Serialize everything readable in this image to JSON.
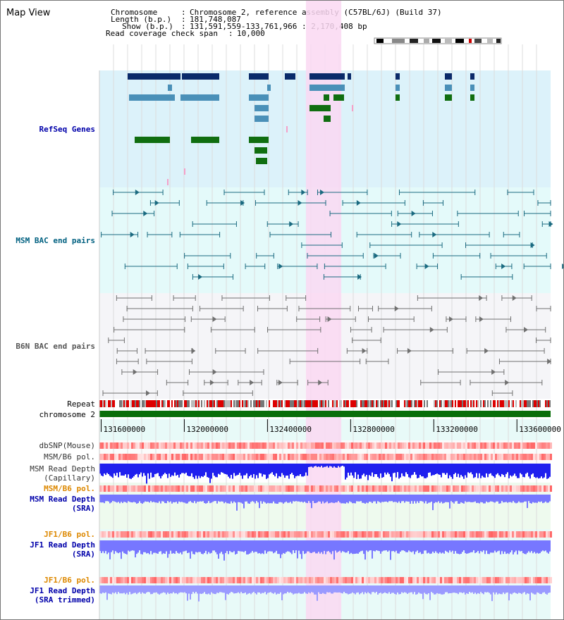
{
  "panel_title": "Map View",
  "header": {
    "chromosome_label": "Chromosome",
    "chromosome_value": "Chromosome 2, reference assembly (C57BL/6J) (Build 37)",
    "length_label": "Length (b.p.)",
    "length_value": "181,748,087",
    "show_label": "Show (b.p.)",
    "show_value": "131,591,559-133,761,966 : 2,170,408 bp",
    "span_label": "Read coverage check span",
    "span_value": "10,000"
  },
  "tracks": {
    "refseq": "RefSeq Genes",
    "msm_bac": "MSM BAC end pairs",
    "b6n_bac": "B6N BAC end pairs",
    "repeat": "Repeat",
    "chromosome": "chromosome 2",
    "dbsnp": "dbSNP(Mouse)",
    "msm_b6_pol_1": "MSM/B6 pol.",
    "msm_read_depth_cap_1": "MSM Read Depth",
    "msm_read_depth_cap_2": "(Capillary)",
    "msm_b6_pol_2": "MSM/B6 pol.",
    "msm_read_depth_sra_1": "MSM Read Depth",
    "msm_read_depth_sra_2": "(SRA)",
    "jf1_b6_pol_1": "JF1/B6 pol.",
    "jf1_read_depth_sra_1": "JF1 Read Depth",
    "jf1_read_depth_sra_2": "(SRA)",
    "jf1_b6_pol_2": "JF1/B6 pol.",
    "jf1_read_depth_trim_1": "JF1 Read Depth",
    "jf1_read_depth_trim_2": "(SRA trimmed)"
  },
  "chart_data": {
    "type": "genome-browser",
    "x_axis": {
      "range": [
        131591559,
        133761966
      ],
      "ticks": [
        131600000,
        132000000,
        132400000,
        132800000,
        133200000,
        133600000
      ]
    },
    "highlight_range": [
      132585000,
      132755000
    ],
    "colors": {
      "refseq_bg": "#dcf2fa",
      "msm_bg": "#e4fafa",
      "b6n_bg": "#f5f5f8",
      "depth_bg": "#e8faf8",
      "highlight": "#fad8f2",
      "refseq_dark": "#0a2a6a",
      "refseq_mid": "#4a90b8",
      "refseq_green": "#106e10",
      "msm_line": "#1a6a80",
      "b6n_line": "#707070",
      "chromosome_bar": "#0a6e0a",
      "depth_blue": "#2020ee",
      "depth_light": "#7777ff",
      "label_blue": "#0000aa",
      "label_teal": "#006080",
      "label_orange": "#dd8800"
    }
  }
}
